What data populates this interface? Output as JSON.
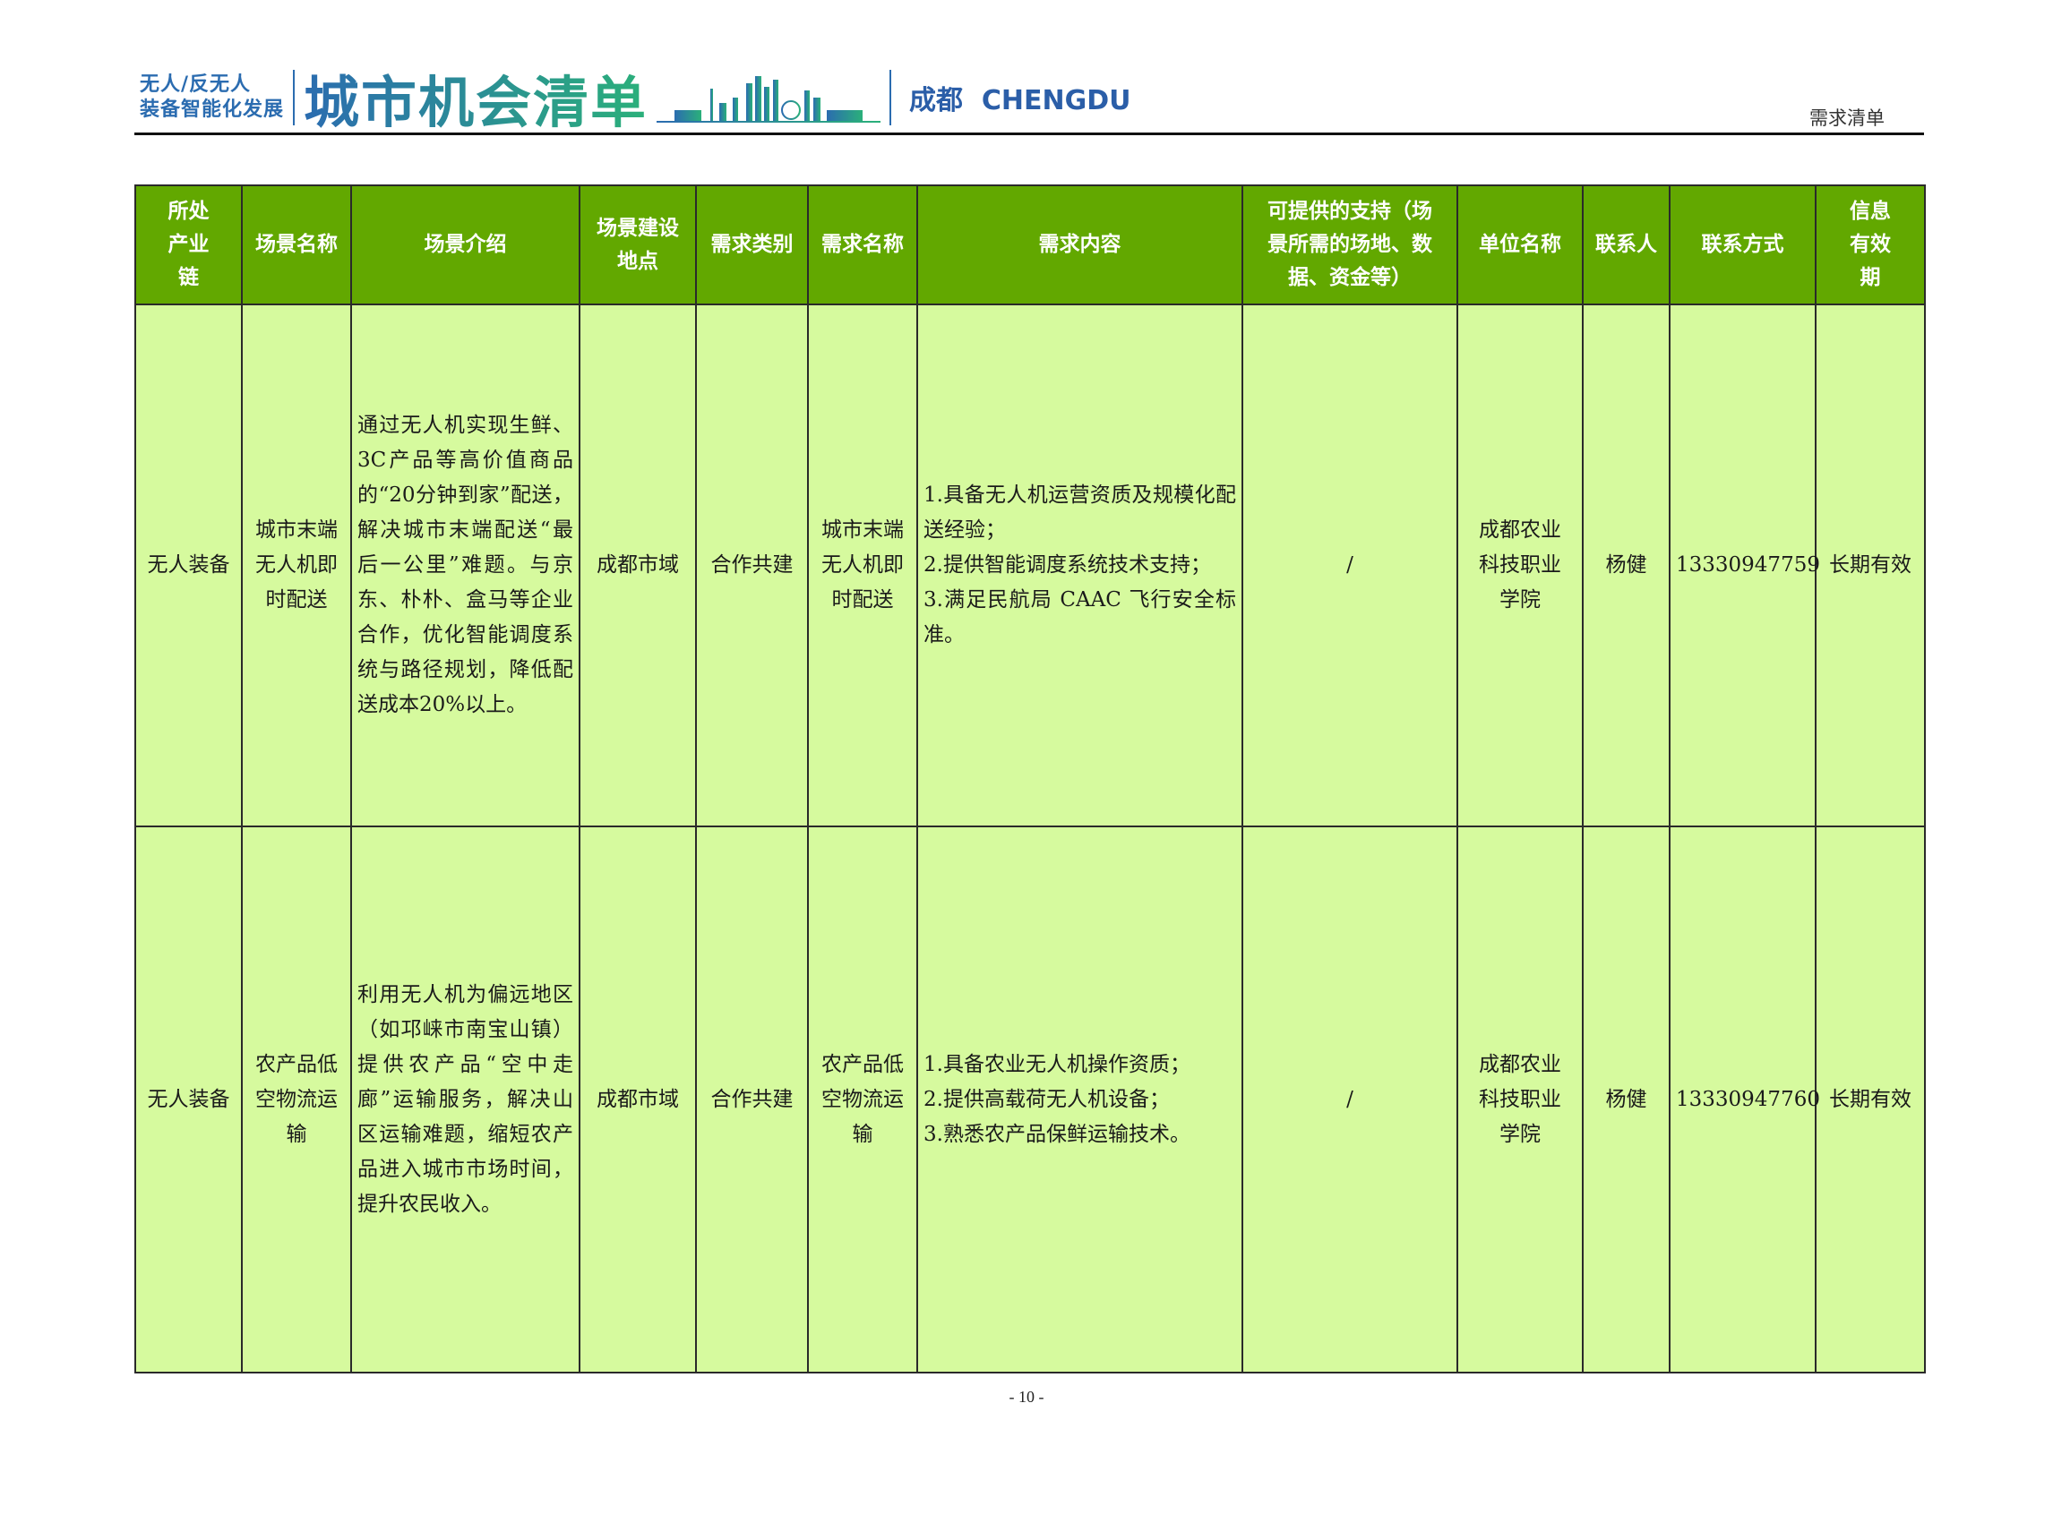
{
  "header": {
    "logo_small_line1": "无人/反无人",
    "logo_small_line2": "装备智能化发展",
    "logo_big": "城市机会清单",
    "city": "成都  CHENGDU",
    "doc_label": "需求清单",
    "brand_color": "#2b6cb0"
  },
  "table": {
    "header_color": "#62a800",
    "body_color": "#d6fa9e",
    "columns": [
      "所处产业链",
      "场景名称",
      "场景介绍",
      "场景建设地点",
      "需求类别",
      "需求名称",
      "需求内容",
      "可提供的支持（场景所需的场地、数据、资金等）",
      "单位名称",
      "联系人",
      "联系方式",
      "信息有效期"
    ],
    "rows": [
      {
        "industry": "无人装备",
        "scene_name": "城市末端无人机即时配送",
        "intro": "通过无人机实现生鲜、3C产品等高价值商品的“20分钟到家”配送，解决城市末端配送“最后一公里”难题。与京东、朴朴、盒马等企业合作，优化智能调度系统与路径规划，降低配送成本20%以上。",
        "location": "成都市域",
        "category": "合作共建",
        "need_name": "城市末端无人机即时配送",
        "content": [
          "1.具备无人机运营资质及规模化配送经验；",
          "2.提供智能调度系统技术支持；",
          "3.满足民航局 CAAC 飞行安全标准。"
        ],
        "support": "/",
        "org": "成都农业科技职业学院",
        "contact": "杨健",
        "phone": "13330947759",
        "validity": "长期有效"
      },
      {
        "industry": "无人装备",
        "scene_name": "农产品低空物流运输",
        "intro": "利用无人机为偏远地区（如邛崃市南宝山镇）提供农产品“空中走廊”运输服务，解决山区运输难题，缩短农产品进入城市市场时间，提升农民收入。",
        "location": "成都市域",
        "category": "合作共建",
        "need_name": "农产品低空物流运输",
        "content": [
          "1.具备农业无人机操作资质；",
          "2.提供高载荷无人机设备；",
          "3.熟悉农产品保鲜运输技术。"
        ],
        "support": "/",
        "org": "成都农业科技职业学院",
        "contact": "杨健",
        "phone": "13330947760",
        "validity": "长期有效"
      }
    ]
  },
  "footer": {
    "page_number": "- 10 -"
  }
}
